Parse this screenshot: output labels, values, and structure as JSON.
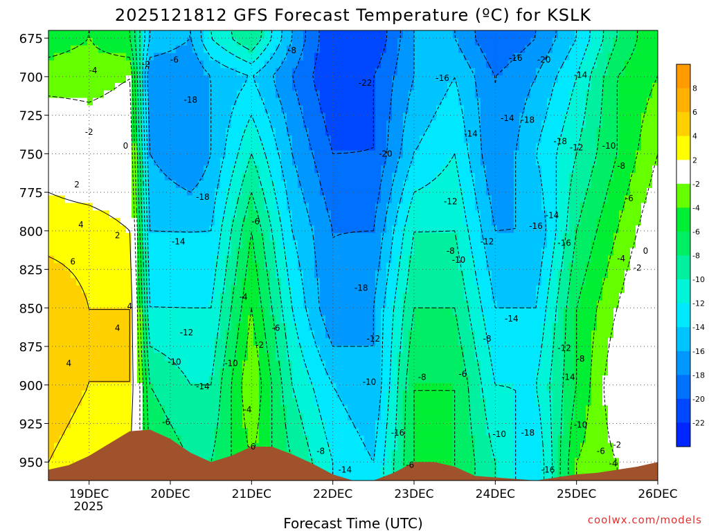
{
  "chart_data": {
    "type": "heatmap",
    "title": "2025121812 GFS Forecast Temperature (ºC) for KSLK",
    "xlabel": "Forecast Time (UTC)",
    "ylabel": "",
    "credit": "coolwx.com/models",
    "y_axis": {
      "ticks": [
        675,
        700,
        725,
        750,
        775,
        800,
        825,
        850,
        875,
        900,
        925,
        950
      ],
      "range": [
        962,
        670
      ],
      "units": "hPa"
    },
    "x_axis": {
      "ticks": [
        "19DEC",
        "20DEC",
        "21DEC",
        "22DEC",
        "23DEC",
        "24DEC",
        "25DEC",
        "26DEC"
      ],
      "tick_values": [
        0.5,
        1.5,
        2.5,
        3.5,
        4.5,
        5.5,
        6.5,
        7.5
      ],
      "year_label": "2025",
      "range": [
        0,
        7.5
      ]
    },
    "colorbar": {
      "tick_labels": [
        "8",
        "6",
        "4",
        "2",
        "-2",
        "-4",
        "-6",
        "-8",
        "-10",
        "-12",
        "-14",
        "-16",
        "-18",
        "-20",
        "-22"
      ],
      "bins": [
        {
          "lo": 8,
          "hi": 10,
          "color": "#ff9a00"
        },
        {
          "lo": 6,
          "hi": 8,
          "color": "#ffb000"
        },
        {
          "lo": 4,
          "hi": 6,
          "color": "#ffd000"
        },
        {
          "lo": 2,
          "hi": 4,
          "color": "#ffff00"
        },
        {
          "lo": -2,
          "hi": 2,
          "color": "#ffffff"
        },
        {
          "lo": -4,
          "hi": -2,
          "color": "#66ff00"
        },
        {
          "lo": -6,
          "hi": -4,
          "color": "#00ee33"
        },
        {
          "lo": -8,
          "hi": -6,
          "color": "#00ee66"
        },
        {
          "lo": -10,
          "hi": -8,
          "color": "#00f0a0"
        },
        {
          "lo": -12,
          "hi": -10,
          "color": "#00f4d8"
        },
        {
          "lo": -14,
          "hi": -12,
          "color": "#00e8ff"
        },
        {
          "lo": -16,
          "hi": -14,
          "color": "#00c4ff"
        },
        {
          "lo": -18,
          "hi": -16,
          "color": "#0098ff"
        },
        {
          "lo": -20,
          "hi": -18,
          "color": "#0070ff"
        },
        {
          "lo": -22,
          "hi": -20,
          "color": "#0048ff"
        },
        {
          "lo": -24,
          "hi": -22,
          "color": "#0026ff"
        }
      ]
    },
    "terrain_color": "#a0522d",
    "time_steps": [
      0,
      0.25,
      0.5,
      0.75,
      1.0,
      1.25,
      1.5,
      1.75,
      2.0,
      2.25,
      2.5,
      2.75,
      3.0,
      3.25,
      3.5,
      3.75,
      4.0,
      4.25,
      4.5,
      4.75,
      5.0,
      5.25,
      5.5,
      5.75,
      6.0,
      6.25,
      6.5,
      6.75,
      7.0,
      7.25,
      7.5
    ],
    "surface_pressure": [
      955,
      952,
      946,
      938,
      930,
      929,
      935,
      944,
      950,
      946,
      940,
      940,
      945,
      951,
      958,
      962,
      962,
      957,
      950,
      950,
      953,
      959,
      960,
      961,
      962,
      960,
      958,
      957,
      955,
      953,
      950
    ],
    "temperature_profiles": [
      {
        "t": 0.0,
        "p": [
          675,
          700,
          750,
          800,
          850,
          900,
          950
        ],
        "T": [
          -5,
          -3,
          1,
          3,
          6,
          6,
          4
        ]
      },
      {
        "t": 0.5,
        "p": [
          675,
          700,
          750,
          800,
          850,
          900,
          950
        ],
        "T": [
          -4,
          -3,
          0,
          3,
          4,
          4,
          2
        ]
      },
      {
        "t": 1.0,
        "p": [
          675,
          700,
          750,
          800,
          850,
          900,
          950
        ],
        "T": [
          -6,
          -2,
          0,
          2,
          4,
          4,
          2
        ]
      },
      {
        "t": 1.25,
        "p": [
          675,
          700,
          750,
          800,
          850,
          900,
          950
        ],
        "T": [
          -14,
          -18,
          -16,
          -14,
          -12,
          -8,
          -6
        ]
      },
      {
        "t": 1.75,
        "p": [
          675,
          700,
          750,
          800,
          850,
          900,
          950
        ],
        "T": [
          -16,
          -18,
          -18,
          -14,
          -12,
          -10,
          -8
        ]
      },
      {
        "t": 2.0,
        "p": [
          675,
          700,
          750,
          800,
          850,
          900,
          950
        ],
        "T": [
          -12,
          -16,
          -16,
          -14,
          -12,
          -10,
          -8
        ]
      },
      {
        "t": 2.5,
        "p": [
          675,
          700,
          750,
          800,
          850,
          900,
          950
        ],
        "T": [
          -8,
          -14,
          -10,
          -6,
          -4,
          -2,
          -4
        ]
      },
      {
        "t": 3.0,
        "p": [
          675,
          700,
          750,
          800,
          850,
          900,
          950
        ],
        "T": [
          -16,
          -18,
          -16,
          -14,
          -12,
          -10,
          -8
        ]
      },
      {
        "t": 3.5,
        "p": [
          675,
          700,
          750,
          800,
          850,
          900,
          950
        ],
        "T": [
          -22,
          -22,
          -20,
          -18,
          -18,
          -14,
          -12
        ]
      },
      {
        "t": 4.0,
        "p": [
          675,
          700,
          750,
          800,
          850,
          900,
          950
        ],
        "T": [
          -22,
          -20,
          -20,
          -18,
          -16,
          -16,
          -14
        ]
      },
      {
        "t": 4.5,
        "p": [
          675,
          700,
          750,
          800,
          850,
          900,
          950
        ],
        "T": [
          -16,
          -16,
          -14,
          -10,
          -8,
          -6,
          -6
        ]
      },
      {
        "t": 5.0,
        "p": [
          675,
          700,
          750,
          800,
          850,
          900,
          950
        ],
        "T": [
          -16,
          -14,
          -12,
          -10,
          -8,
          -6,
          -6
        ]
      },
      {
        "t": 5.5,
        "p": [
          675,
          700,
          750,
          800,
          850,
          900,
          950
        ],
        "T": [
          -20,
          -18,
          -18,
          -16,
          -14,
          -12,
          -10
        ]
      },
      {
        "t": 6.0,
        "p": [
          675,
          700,
          750,
          800,
          850,
          900,
          950
        ],
        "T": [
          -18,
          -16,
          -14,
          -16,
          -14,
          -12,
          -14
        ]
      },
      {
        "t": 6.5,
        "p": [
          675,
          700,
          750,
          800,
          850,
          900,
          950
        ],
        "T": [
          -14,
          -12,
          -10,
          -8,
          -6,
          -6,
          -4
        ]
      },
      {
        "t": 7.0,
        "p": [
          675,
          700,
          750,
          800,
          850,
          900,
          950
        ],
        "T": [
          -8,
          -6,
          -6,
          -4,
          -2,
          0,
          -2
        ]
      },
      {
        "t": 7.5,
        "p": [
          675,
          700,
          750,
          800,
          850,
          900,
          950
        ],
        "T": [
          -4,
          -4,
          -2,
          0,
          2,
          0,
          -2
        ]
      }
    ],
    "contour_labels": [
      {
        "text": "-4",
        "t": 0.55,
        "p": 696
      },
      {
        "text": "-2",
        "t": 1.2,
        "p": 692
      },
      {
        "text": "-6",
        "t": 1.55,
        "p": 689
      },
      {
        "text": "-8",
        "t": 3.0,
        "p": 683
      },
      {
        "text": "-22",
        "t": 3.9,
        "p": 704
      },
      {
        "text": "-16",
        "t": 4.85,
        "p": 701
      },
      {
        "text": "-16",
        "t": 5.75,
        "p": 688
      },
      {
        "text": "-20",
        "t": 6.1,
        "p": 689
      },
      {
        "text": "-14",
        "t": 6.55,
        "p": 699
      },
      {
        "text": "-18",
        "t": 1.75,
        "p": 715
      },
      {
        "text": "-14",
        "t": 5.65,
        "p": 727
      },
      {
        "text": "-18",
        "t": 5.9,
        "p": 728
      },
      {
        "text": "-2",
        "t": 0.5,
        "p": 736
      },
      {
        "text": "0",
        "t": 0.95,
        "p": 745
      },
      {
        "text": "-14",
        "t": 5.2,
        "p": 737
      },
      {
        "text": "-18",
        "t": 6.3,
        "p": 742
      },
      {
        "text": "-12",
        "t": 6.5,
        "p": 746
      },
      {
        "text": "-10",
        "t": 6.9,
        "p": 745
      },
      {
        "text": "-20",
        "t": 4.15,
        "p": 750
      },
      {
        "text": "-8",
        "t": 7.05,
        "p": 758
      },
      {
        "text": "2",
        "t": 0.35,
        "p": 770
      },
      {
        "text": "-18",
        "t": 1.9,
        "p": 778
      },
      {
        "text": "-12",
        "t": 4.95,
        "p": 781
      },
      {
        "text": "-6",
        "t": 7.15,
        "p": 779
      },
      {
        "text": "-14",
        "t": 6.2,
        "p": 790
      },
      {
        "text": "-6",
        "t": 2.55,
        "p": 794
      },
      {
        "text": "-16",
        "t": 6.0,
        "p": 797
      },
      {
        "text": "4",
        "t": 0.4,
        "p": 796
      },
      {
        "text": "2",
        "t": 0.85,
        "p": 803
      },
      {
        "text": "-14",
        "t": 1.6,
        "p": 807
      },
      {
        "text": "-12",
        "t": 5.4,
        "p": 807
      },
      {
        "text": "-16",
        "t": 6.35,
        "p": 808
      },
      {
        "text": "-8",
        "t": 4.95,
        "p": 813
      },
      {
        "text": "-10",
        "t": 5.05,
        "p": 819
      },
      {
        "text": "-4",
        "t": 7.05,
        "p": 818
      },
      {
        "text": "0",
        "t": 7.35,
        "p": 813
      },
      {
        "text": "6",
        "t": 0.3,
        "p": 820
      },
      {
        "text": "-2",
        "t": 7.25,
        "p": 824
      },
      {
        "text": "-4",
        "t": 2.4,
        "p": 843
      },
      {
        "text": "-18",
        "t": 3.85,
        "p": 837
      },
      {
        "text": "-14",
        "t": 5.7,
        "p": 857
      },
      {
        "text": "4",
        "t": 1.0,
        "p": 849
      },
      {
        "text": "-12",
        "t": 1.7,
        "p": 866
      },
      {
        "text": "4",
        "t": 0.85,
        "p": 863
      },
      {
        "text": "-6",
        "t": 2.8,
        "p": 863
      },
      {
        "text": "-2",
        "t": 2.6,
        "p": 874
      },
      {
        "text": "-12",
        "t": 4.0,
        "p": 870
      },
      {
        "text": "-8",
        "t": 5.4,
        "p": 870
      },
      {
        "text": "-12",
        "t": 6.35,
        "p": 876
      },
      {
        "text": "4",
        "t": 0.25,
        "p": 886
      },
      {
        "text": "-10",
        "t": 1.55,
        "p": 885
      },
      {
        "text": "-10",
        "t": 2.25,
        "p": 886
      },
      {
        "text": "-8",
        "t": 6.55,
        "p": 883
      },
      {
        "text": "-6",
        "t": 5.1,
        "p": 893
      },
      {
        "text": "-10",
        "t": 3.95,
        "p": 898
      },
      {
        "text": "-8",
        "t": 4.6,
        "p": 895
      },
      {
        "text": "-14",
        "t": 1.9,
        "p": 901
      },
      {
        "text": "-14",
        "t": 6.4,
        "p": 895
      },
      {
        "text": "-4",
        "t": 2.45,
        "p": 916
      },
      {
        "text": "-6",
        "t": 1.45,
        "p": 924
      },
      {
        "text": "-10",
        "t": 6.55,
        "p": 926
      },
      {
        "text": "-16",
        "t": 4.3,
        "p": 931
      },
      {
        "text": "-10",
        "t": 5.55,
        "p": 932
      },
      {
        "text": "-18",
        "t": 5.9,
        "p": 931
      },
      {
        "text": "-2",
        "t": 7.0,
        "p": 939
      },
      {
        "text": "-6",
        "t": 2.5,
        "p": 940
      },
      {
        "text": "-8",
        "t": 3.35,
        "p": 943
      },
      {
        "text": "-6",
        "t": 6.8,
        "p": 943
      },
      {
        "text": "-4",
        "t": 6.95,
        "p": 951
      },
      {
        "text": "-6",
        "t": 4.45,
        "p": 952
      },
      {
        "text": "-14",
        "t": 3.65,
        "p": 955
      },
      {
        "text": "-16",
        "t": 6.15,
        "p": 955
      }
    ]
  }
}
